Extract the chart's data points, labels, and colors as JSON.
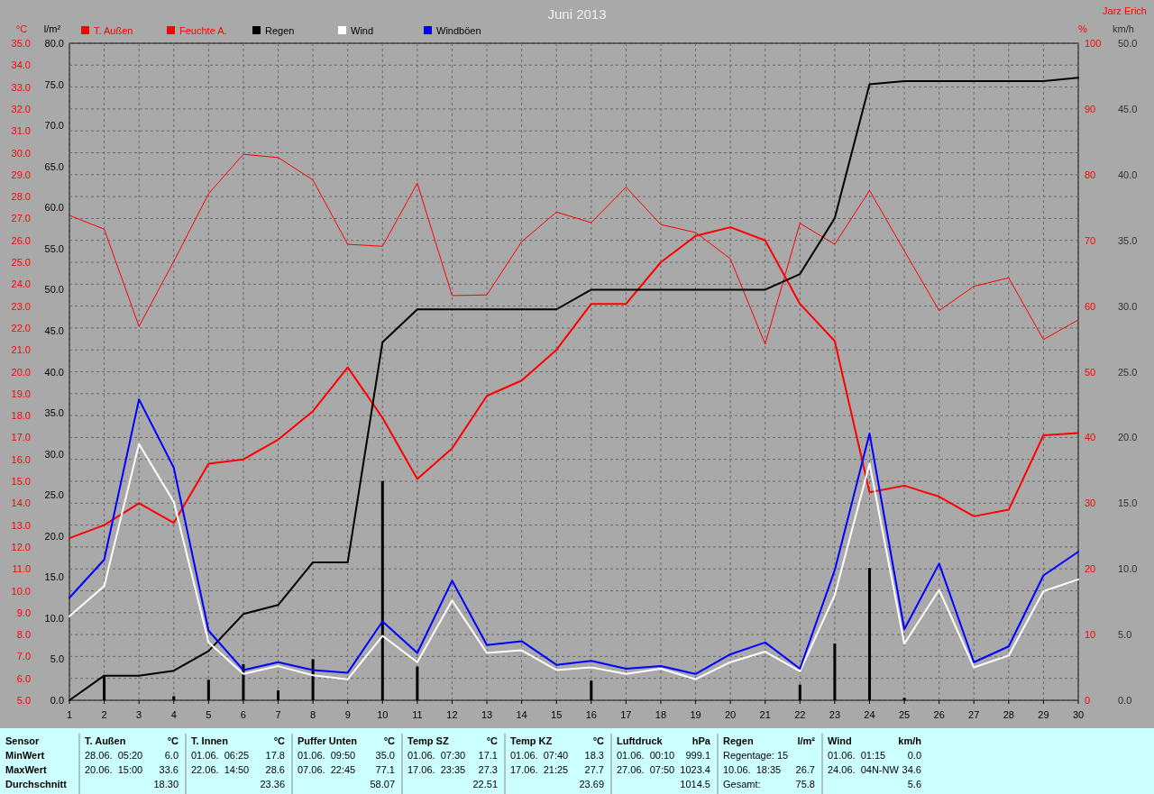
{
  "chart_data": [
    {
      "type": "line",
      "title": "Juni 2013",
      "ylabel": "°C",
      "y2label": "l/m²",
      "y3label": "%",
      "x": [
        1,
        2,
        3,
        4,
        5,
        6,
        7,
        8,
        9,
        10,
        11,
        12,
        13,
        14,
        15,
        16,
        17,
        18,
        19,
        20,
        21,
        22,
        23,
        24,
        25,
        26,
        27,
        28,
        29,
        30
      ],
      "xlim": [
        1,
        30
      ],
      "xticks": [
        1,
        2,
        3,
        4,
        5,
        6,
        7,
        8,
        9,
        10,
        11,
        12,
        13,
        14,
        15,
        16,
        17,
        18,
        19,
        20,
        21,
        22,
        23,
        24,
        25,
        26,
        27,
        28,
        29,
        30
      ],
      "ylim": [
        5,
        35
      ],
      "yticks": [
        {
          "value": 5,
          "label": "5.0"
        },
        {
          "value": 6,
          "label": "6.0"
        },
        {
          "value": 7,
          "label": "7.0"
        },
        {
          "value": 8,
          "label": "8.0"
        },
        {
          "value": 9,
          "label": "9.0"
        },
        {
          "value": 10,
          "label": "10.0"
        },
        {
          "value": 11,
          "label": "11.0"
        },
        {
          "value": 12,
          "label": "12.0"
        },
        {
          "value": 13,
          "label": "13.0"
        },
        {
          "value": 14,
          "label": "14.0"
        },
        {
          "value": 15,
          "label": "15.0"
        },
        {
          "value": 16,
          "label": "16.0"
        },
        {
          "value": 17,
          "label": "17.0"
        },
        {
          "value": 18,
          "label": "18.0"
        },
        {
          "value": 19,
          "label": "19.0"
        },
        {
          "value": 20,
          "label": "20.0"
        },
        {
          "value": 21,
          "label": "21.0"
        },
        {
          "value": 22,
          "label": "22.0"
        },
        {
          "value": 23,
          "label": "23.0"
        },
        {
          "value": 24,
          "label": "24.0"
        },
        {
          "value": 25,
          "label": "25.0"
        },
        {
          "value": 26,
          "label": "26.0"
        },
        {
          "value": 27,
          "label": "27.0"
        },
        {
          "value": 28,
          "label": "28.0"
        },
        {
          "value": 29,
          "label": "29.0"
        },
        {
          "value": 30,
          "label": "30.0"
        },
        {
          "value": 31,
          "label": "31.0"
        },
        {
          "value": 32,
          "label": "32.0"
        },
        {
          "value": 33,
          "label": "33.0"
        },
        {
          "value": 34,
          "label": "34.0"
        },
        {
          "value": 35,
          "label": "35.0"
        }
      ],
      "y2lim": [
        0,
        80
      ],
      "y2ticks": [
        {
          "value": 0,
          "label": "0.0"
        },
        {
          "value": 5,
          "label": "5.0"
        },
        {
          "value": 10,
          "label": "10.0"
        },
        {
          "value": 15,
          "label": "15.0"
        },
        {
          "value": 20,
          "label": "20.0"
        },
        {
          "value": 25,
          "label": "25.0"
        },
        {
          "value": 30,
          "label": "30.0"
        },
        {
          "value": 35,
          "label": "35.0"
        },
        {
          "value": 40,
          "label": "40.0"
        },
        {
          "value": 45,
          "label": "45.0"
        },
        {
          "value": 50,
          "label": "50.0"
        },
        {
          "value": 55,
          "label": "55.0"
        },
        {
          "value": 60,
          "label": "60.0"
        },
        {
          "value": 65,
          "label": "65.0"
        },
        {
          "value": 70,
          "label": "70.0"
        },
        {
          "value": 75,
          "label": "75.0"
        },
        {
          "value": 80,
          "label": "80.0"
        }
      ],
      "y3lim": [
        0,
        100
      ],
      "y3ticks": [
        0,
        10,
        20,
        30,
        40,
        50,
        60,
        70,
        80,
        90,
        100
      ],
      "grid": true,
      "legend": "top",
      "series": [
        {
          "name": "T. Außen",
          "color": "#ff0000",
          "values": [
            12.4,
            13.0,
            14.0,
            13.1,
            15.8,
            16.0,
            16.9,
            18.2,
            20.2,
            17.9,
            15.1,
            16.5,
            18.9,
            19.6,
            21.0,
            23.1,
            23.1,
            25.0,
            26.2,
            26.6,
            26.0,
            23.1,
            21.4,
            14.5,
            14.8,
            14.3,
            13.4,
            13.7,
            17.1,
            17.2
          ]
        },
        {
          "name": "Feuchte A.",
          "color": "#ff0000",
          "axis": "y3",
          "values": [
            73.8,
            71.7,
            56.9,
            66.8,
            77.1,
            83.1,
            82.6,
            79.2,
            69.4,
            69.1,
            78.7,
            61.6,
            61.7,
            69.8,
            74.3,
            72.7,
            78.1,
            72.4,
            71.2,
            67.2,
            54.2,
            72.6,
            69.4,
            77.6,
            68.4,
            59.3,
            63.0,
            64.3,
            54.9,
            57.9
          ]
        },
        {
          "type": "bar",
          "color": "#000000",
          "axis": "y2",
          "values": [
            null,
            3.0,
            null,
            0.5,
            2.5,
            4.4,
            1.2,
            5.0,
            null,
            26.7,
            4.1,
            null,
            null,
            null,
            null,
            2.4,
            null,
            null,
            null,
            null,
            null,
            1.9,
            6.9,
            16.1,
            0.3,
            null,
            null,
            null,
            null,
            null
          ]
        },
        {
          "name": "Regen",
          "color": "#000000",
          "axis": "y2",
          "values": [
            0,
            3.0,
            3.0,
            3.6,
            6.0,
            10.5,
            11.6,
            16.8,
            16.8,
            43.6,
            47.6,
            47.6,
            47.6,
            47.6,
            47.6,
            50.0,
            50.0,
            50.0,
            50.0,
            50.0,
            50.0,
            51.9,
            58.7,
            75.0,
            75.4,
            75.4,
            75.4,
            75.4,
            75.4,
            75.8
          ]
        }
      ],
      "annotations": [
        "Jarz Erich",
        "Sensor\nMinWert\nMaxWert\nDurchschnitt",
        "T. Außen\t°C\n28.06.  05:20\t6.0\n20.06.  15:00\t33.6\n\t18.30",
        "T. Innen\t°C\n01.06.  06:25\t17.8\n22.06.  14:50\t28.6\n\t23.36",
        "Puffer Unten\t°C\n01.06.  09:50\t35.0\n07.06.  22:45\t77.1\n\t58.07",
        "Temp SZ\t°C\n01.06.  07:30\t17.1\n17.06.  23:35\t27.3\n\t22.51",
        "Temp KZ\t°C\n01.06.  07:40\t18.3\n17.06.  21:25\t27.7\n\t23.69",
        "Luftdruck\thPa\n01.06.  00:10\t999.1\n27.06.  07:50\t1023.4\n\t1014.5",
        "Regen\tl/m²\nRegentage: 15\t\n10.06.  18:35\t26.7\nGesamt:\t75.8",
        "Wind\tkm/h\n01.06.  01:15\t0.0\n24.06.  04N-NW\t34.6\n\t5.6"
      ]
    },
    {
      "type": "line",
      "ylabel": "km/h",
      "tick_labels": "y",
      "legend": "top",
      "x": [
        1,
        2,
        3,
        4,
        5,
        6,
        7,
        8,
        9,
        10,
        11,
        12,
        13,
        14,
        15,
        16,
        17,
        18,
        19,
        20,
        21,
        22,
        23,
        24,
        25,
        26,
        27,
        28,
        29,
        30
      ],
      "xlim": [
        1,
        30
      ],
      "ylim": [
        0,
        50
      ],
      "yticks": [
        {
          "value": 0,
          "label": "0.0"
        },
        {
          "value": 5,
          "label": "5.0"
        },
        {
          "value": 10,
          "label": "10.0"
        },
        {
          "value": 15,
          "label": "15.0"
        },
        {
          "value": 20,
          "label": "20.0"
        },
        {
          "value": 25,
          "label": "25.0"
        },
        {
          "value": 30,
          "label": "30.0"
        },
        {
          "value": 35,
          "label": "35.0"
        },
        {
          "value": 40,
          "label": "40.0"
        },
        {
          "value": 45,
          "label": "45.0"
        },
        {
          "value": 50,
          "label": "50.0"
        }
      ],
      "series": [
        {
          "name": "Wind",
          "color": "#ffffff",
          "values": [
            6.4,
            8.7,
            19.5,
            15.1,
            4.4,
            2.0,
            2.6,
            1.9,
            1.6,
            4.9,
            2.9,
            7.6,
            3.6,
            3.8,
            2.3,
            2.5,
            2.0,
            2.4,
            1.6,
            2.9,
            3.7,
            2.2,
            8.0,
            18.0,
            4.3,
            8.4,
            2.5,
            3.4,
            8.3,
            9.2
          ]
        },
        {
          "name": "Windböen",
          "color": "#0000ff",
          "values": [
            7.8,
            10.7,
            22.9,
            17.7,
            5.3,
            2.3,
            2.9,
            2.3,
            2.1,
            6.0,
            3.6,
            9.1,
            4.2,
            4.5,
            2.7,
            3.0,
            2.4,
            2.6,
            2.0,
            3.5,
            4.4,
            2.4,
            9.9,
            20.3,
            5.4,
            10.4,
            2.9,
            4.1,
            9.5,
            11.3
          ]
        }
      ]
    }
  ]
}
